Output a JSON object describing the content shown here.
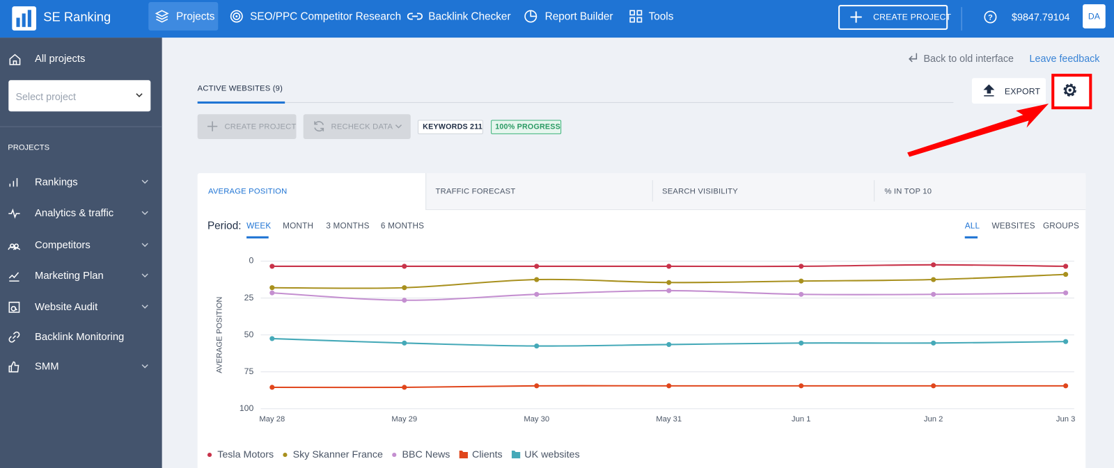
{
  "header": {
    "logo": "SE Ranking",
    "nav": [
      "Projects",
      "SEO/PPC Competitor Research",
      "Backlink Checker",
      "Report Builder",
      "Tools"
    ],
    "create_project": "CREATE PROJECT",
    "balance": "$9847.79104",
    "avatar": "DA"
  },
  "sidebar": {
    "all_projects": "All projects",
    "select_placeholder": "Select project",
    "section": "PROJECTS",
    "items": [
      "Rankings",
      "Analytics & traffic",
      "Competitors",
      "Marketing Plan",
      "Website Audit",
      "Backlink Monitoring",
      "SMM"
    ]
  },
  "toolbar": {
    "back": "Back to old interface",
    "feedback": "Leave feedback",
    "tab": "ACTIVE WEBSITES (9)",
    "export": "EXPORT",
    "create_project": "CREATE PROJECT",
    "recheck": "RECHECK DATA",
    "keywords": "KEYWORDS 211",
    "progress": "100%  PROGRESS"
  },
  "chart_tabs": [
    "AVERAGE POSITION",
    "TRAFFIC FORECAST",
    "SEARCH VISIBILITY",
    "% IN TOP 10"
  ],
  "period": {
    "label": "Period:",
    "options": [
      "WEEK",
      "MONTH",
      "3 MONTHS",
      "6 MONTHS"
    ],
    "view_options": [
      "ALL",
      "WEBSITES",
      "GROUPS"
    ]
  },
  "chart_data": {
    "type": "line",
    "y_label": "AVERAGE POSITION",
    "categories": [
      "May 28",
      "May 29",
      "May 30",
      "May 31",
      "Jun 1",
      "Jun 2",
      "Jun 3"
    ],
    "ylim": [
      100,
      0
    ],
    "yticks": [
      0,
      25,
      50,
      75,
      100
    ],
    "grid": true,
    "series": [
      {
        "name": "Tesla Motors",
        "color": "#c8334a",
        "marker": "dot",
        "values": [
          3.5,
          3.5,
          3.5,
          3.5,
          3.5,
          2.5,
          3.5
        ]
      },
      {
        "name": "Sky Skanner France",
        "color": "#a8901e",
        "marker": "dot",
        "values": [
          18,
          18,
          12.5,
          14.5,
          13.5,
          12.5,
          9
        ]
      },
      {
        "name": "BBC News",
        "color": "#c48fd0",
        "marker": "dot",
        "values": [
          21.5,
          26.5,
          22.5,
          20,
          22.5,
          22.5,
          21.5
        ]
      },
      {
        "name": "Clients",
        "color": "#e0461c",
        "marker": "folder",
        "values": [
          85.5,
          85.5,
          84.5,
          84.5,
          84.5,
          84.5,
          84.5
        ]
      },
      {
        "name": "UK websites",
        "color": "#45a9b8",
        "marker": "folder",
        "values": [
          52.5,
          55.5,
          57.5,
          56.5,
          55.5,
          55.5,
          54.5
        ]
      }
    ]
  }
}
